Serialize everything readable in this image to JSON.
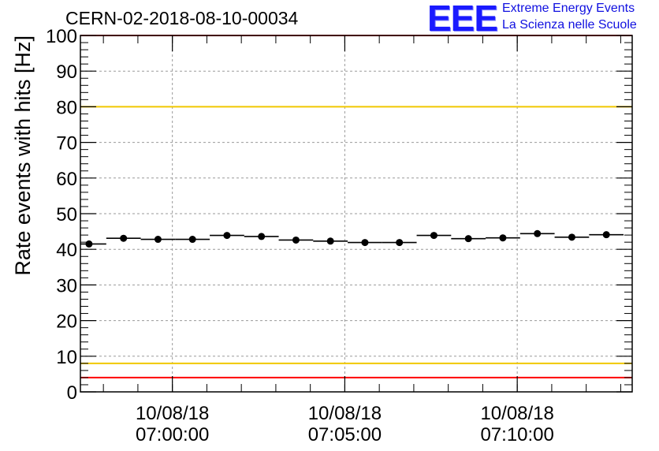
{
  "header": {
    "run_title": "CERN-02-2018-08-10-00034"
  },
  "logo": {
    "mark": "EEE",
    "line1": "Extreme Energy Events",
    "line2": "La Scienza nelle Scuole",
    "color": "#1010e0"
  },
  "chart_data": {
    "type": "scatter",
    "title": "",
    "ylabel": "Rate events with hits [Hz]",
    "xlabel": "",
    "ylim": [
      0,
      100
    ],
    "yticks": [
      0,
      10,
      20,
      30,
      40,
      50,
      60,
      70,
      80,
      90,
      100
    ],
    "xlim": [
      "06:57:20",
      "07:13:20"
    ],
    "xticks": [
      {
        "time": "07:00:00",
        "date": "10/08/18",
        "label": "07:00:00"
      },
      {
        "time": "07:05:00",
        "date": "10/08/18",
        "label": "07:05:00"
      },
      {
        "time": "07:10:00",
        "date": "10/08/18",
        "label": "07:10:00"
      }
    ],
    "grid": true,
    "bin_width_seconds": 60,
    "points": [
      {
        "x": "06:57:35",
        "y": 41.5
      },
      {
        "x": "06:58:35",
        "y": 43.1
      },
      {
        "x": "06:59:35",
        "y": 42.8
      },
      {
        "x": "07:00:35",
        "y": 42.8
      },
      {
        "x": "07:01:35",
        "y": 43.9
      },
      {
        "x": "07:02:35",
        "y": 43.6
      },
      {
        "x": "07:03:35",
        "y": 42.6
      },
      {
        "x": "07:04:35",
        "y": 42.3
      },
      {
        "x": "07:05:35",
        "y": 41.9
      },
      {
        "x": "07:06:35",
        "y": 41.9
      },
      {
        "x": "07:07:35",
        "y": 43.9
      },
      {
        "x": "07:08:35",
        "y": 43.0
      },
      {
        "x": "07:09:35",
        "y": 43.2
      },
      {
        "x": "07:10:35",
        "y": 44.4
      },
      {
        "x": "07:11:35",
        "y": 43.4
      },
      {
        "x": "07:12:35",
        "y": 44.1
      }
    ],
    "reference_lines": [
      {
        "y": 100,
        "color": "#ff0000"
      },
      {
        "y": 80,
        "color": "#f0c800"
      },
      {
        "y": 8,
        "color": "#f0c800"
      },
      {
        "y": 4,
        "color": "#ff0000"
      }
    ],
    "marker_color": "#000000"
  }
}
